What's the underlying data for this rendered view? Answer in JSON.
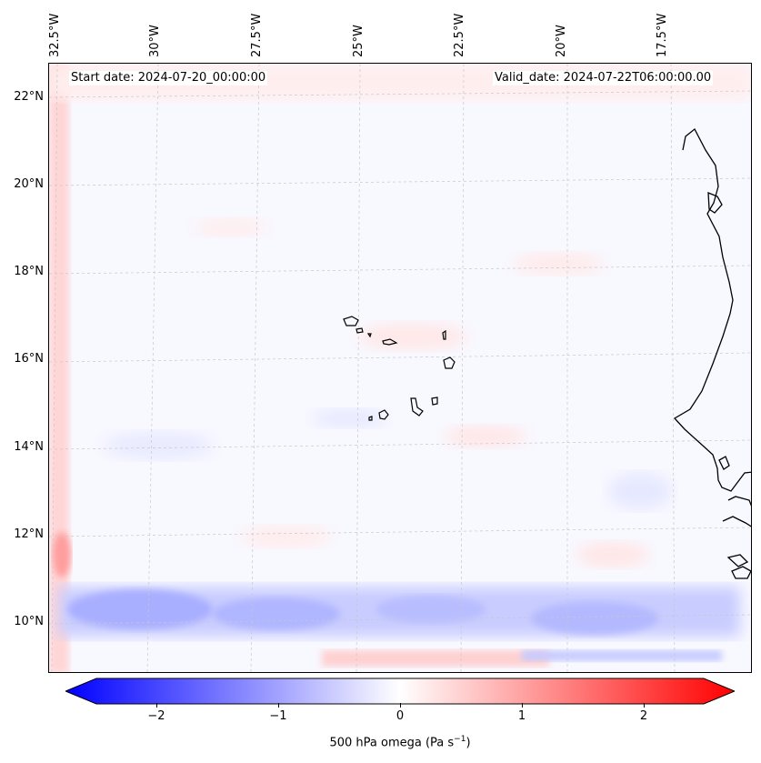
{
  "map": {
    "start_date": "Start date: 2024-07-20_00:00:00",
    "valid_date": "Valid_date: 2024-07-22T06:00:00.00",
    "longitude_labels": [
      "32.5°W",
      "30°W",
      "27.5°W",
      "25°W",
      "22.5°W",
      "20°W",
      "17.5°W"
    ],
    "latitude_labels": [
      "22°N",
      "20°N",
      "18°N",
      "16°N",
      "14°N",
      "12°N",
      "10°N"
    ],
    "features": [
      "Cape Verde islands",
      "West African coastline"
    ]
  },
  "colorbar": {
    "label_main": "500 hPa omega (Pa s",
    "label_exp": "−1",
    "label_end": ")",
    "ticks": [
      "−2",
      "−1",
      "0",
      "1",
      "2"
    ],
    "min_color": "#0000ff",
    "mid_color": "#ffffff",
    "max_color": "#ff0000"
  }
}
